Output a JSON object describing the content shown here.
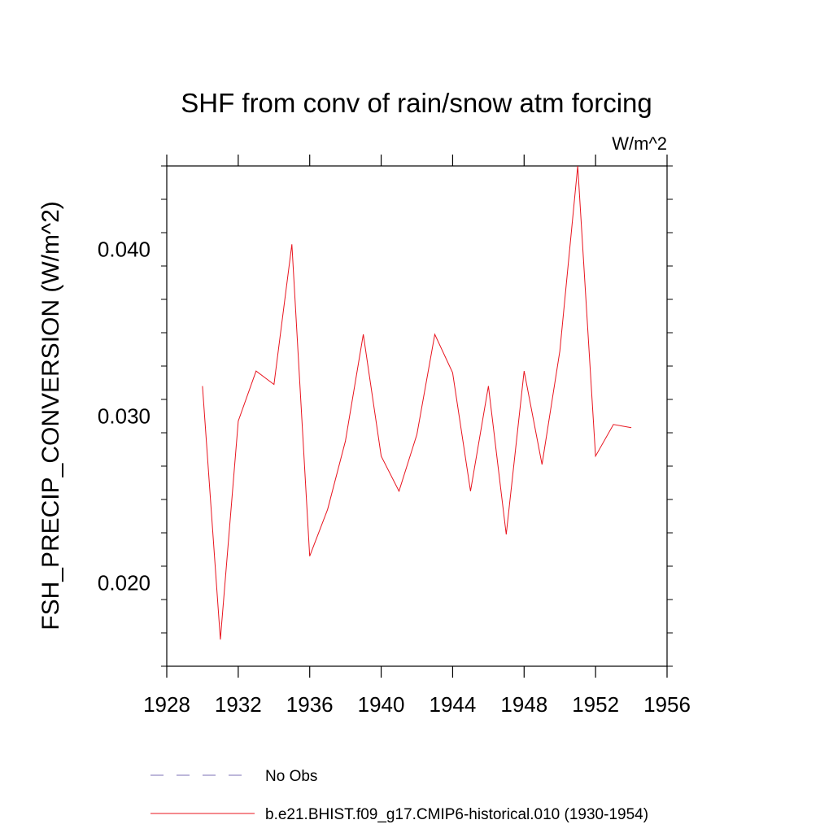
{
  "chart_data": {
    "type": "line",
    "title": "SHF from conv of rain/snow atm forcing",
    "units": "W/m^2",
    "xlabel": "",
    "ylabel": "FSH_PRECIP_CONVERSION  (W/m^2)",
    "xlim": [
      1928,
      1956
    ],
    "ylim": [
      0.015,
      0.045
    ],
    "x_ticks": [
      1928,
      1932,
      1936,
      1940,
      1944,
      1948,
      1952,
      1956
    ],
    "x_tick_labels": [
      "1928",
      "1932",
      "1936",
      "1940",
      "1944",
      "1948",
      "1952",
      "1956"
    ],
    "y_ticks": [
      0.02,
      0.03,
      0.04
    ],
    "y_tick_labels": [
      "0.020",
      "0.030",
      "0.040"
    ],
    "grid": false,
    "legend_placement": "bottom",
    "series": [
      {
        "name": "No Obs",
        "color": "#7b6fb5",
        "dash": "dashed",
        "x": [],
        "y": []
      },
      {
        "name": "b.e21.BHIST.f09_g17.CMIP6-historical.010 (1930-1954)",
        "color": "#e8141e",
        "dash": "solid",
        "x": [
          1930,
          1931,
          1932,
          1933,
          1934,
          1935,
          1936,
          1937,
          1938,
          1939,
          1940,
          1941,
          1942,
          1943,
          1944,
          1945,
          1946,
          1947,
          1948,
          1949,
          1950,
          1951,
          1952,
          1953,
          1954
        ],
        "y": [
          0.0318,
          0.0166,
          0.0297,
          0.0327,
          0.0319,
          0.0403,
          0.0216,
          0.0244,
          0.0285,
          0.0349,
          0.0276,
          0.0255,
          0.0289,
          0.0349,
          0.0326,
          0.0255,
          0.0318,
          0.0229,
          0.0327,
          0.0271,
          0.0339,
          0.045,
          0.0276,
          0.0295,
          0.0293
        ]
      }
    ]
  }
}
